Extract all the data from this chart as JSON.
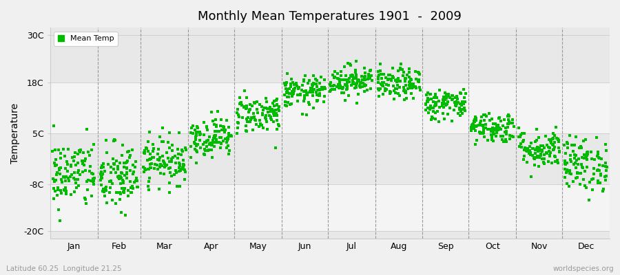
{
  "title": "Monthly Mean Temperatures 1901  -  2009",
  "ylabel": "Temperature",
  "subtitle_left": "Latitude 60.25  Longitude 21.25",
  "subtitle_right": "worldspecies.org",
  "ytick_labels": [
    "-20C",
    "-8C",
    "5C",
    "18C",
    "30C"
  ],
  "ytick_values": [
    -20,
    -8,
    5,
    18,
    30
  ],
  "ylim": [
    -22,
    32
  ],
  "months": [
    "Jan",
    "Feb",
    "Mar",
    "Apr",
    "May",
    "Jun",
    "Jul",
    "Aug",
    "Sep",
    "Oct",
    "Nov",
    "Dec"
  ],
  "dot_color": "#00bb00",
  "dot_size": 5,
  "bg_color": "#f0f0f0",
  "plot_bg_color": "#ffffff",
  "band_color_even": "#e8e8e8",
  "band_color_odd": "#f4f4f4",
  "legend_label": "Mean Temp",
  "n_years": 109,
  "monthly_means": [
    -5.5,
    -6.5,
    -2.0,
    4.0,
    10.0,
    15.5,
    18.5,
    17.5,
    12.5,
    6.5,
    1.0,
    -3.0
  ],
  "monthly_stds": [
    4.5,
    4.5,
    3.0,
    2.5,
    2.5,
    2.0,
    2.0,
    2.0,
    2.0,
    2.0,
    2.5,
    3.5
  ],
  "seed": 42
}
